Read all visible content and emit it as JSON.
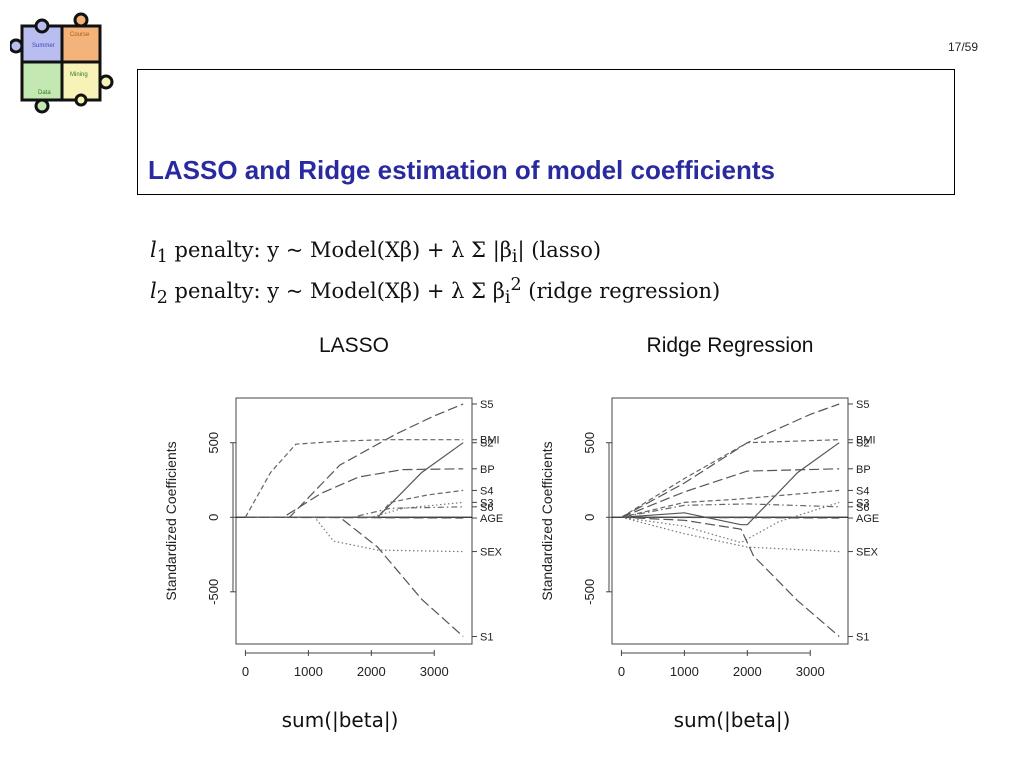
{
  "page": {
    "number": "17/59"
  },
  "logo": {
    "pieces": [
      "Summer",
      "Course",
      "Mining",
      "Data"
    ]
  },
  "title": "LASSO and Ridge estimation of model coefficients",
  "formulas": {
    "l1": {
      "term": "l",
      "sub": "1",
      "text": " penalty:  y ~ Model(Xβ) + λ Σ |β",
      "sub_i": "i",
      "tail": "|  (lasso)"
    },
    "l2": {
      "term": "l",
      "sub": "2",
      "text": " penalty:  y ~ Model(Xβ) + λ Σ β",
      "sub_i": "i",
      "sup": "2",
      "tail": "  (ridge regression)"
    }
  },
  "x_caption": "sum(|beta|)",
  "chart_data": [
    {
      "type": "line",
      "title": "LASSO",
      "xlabel": "",
      "ylabel": "Standardized Coefficients",
      "xlim": [
        -150,
        3600
      ],
      "ylim": [
        -850,
        800
      ],
      "xticks": [
        "0",
        "1000",
        "2000",
        "3000"
      ],
      "yticks": [
        "500",
        "0",
        "-500"
      ],
      "grid": false,
      "legend": "right-edge labels",
      "series": [
        {
          "name": "S5",
          "style": "longdash",
          "points": [
            [
              0,
              0
            ],
            [
              700,
              0
            ],
            [
              1500,
              350
            ],
            [
              2400,
              560
            ],
            [
              3000,
              680
            ],
            [
              3460,
              760
            ]
          ]
        },
        {
          "name": "BMI",
          "style": "dash",
          "points": [
            [
              0,
              0
            ],
            [
              400,
              300
            ],
            [
              800,
              490
            ],
            [
              1500,
              510
            ],
            [
              2200,
              520
            ],
            [
              3460,
              520
            ]
          ]
        },
        {
          "name": "S2",
          "style": "solid",
          "points": [
            [
              0,
              0
            ],
            [
              2100,
              0
            ],
            [
              2800,
              300
            ],
            [
              3460,
              500
            ]
          ]
        },
        {
          "name": "BP",
          "style": "longdash",
          "points": [
            [
              0,
              0
            ],
            [
              600,
              0
            ],
            [
              1200,
              160
            ],
            [
              1800,
              270
            ],
            [
              2500,
              320
            ],
            [
              3460,
              325
            ]
          ]
        },
        {
          "name": "S4",
          "style": "dash",
          "points": [
            [
              0,
              0
            ],
            [
              2100,
              0
            ],
            [
              2300,
              100
            ],
            [
              2900,
              150
            ],
            [
              3460,
              180
            ]
          ]
        },
        {
          "name": "S3",
          "style": "dot",
          "points": [
            [
              0,
              0
            ],
            [
              2000,
              0
            ],
            [
              2500,
              60
            ],
            [
              3460,
              100
            ]
          ]
        },
        {
          "name": "S6",
          "style": "dotdash",
          "points": [
            [
              0,
              0
            ],
            [
              1700,
              0
            ],
            [
              2300,
              60
            ],
            [
              3460,
              70
            ]
          ]
        },
        {
          "name": "AGE",
          "style": "longdash",
          "points": [
            [
              0,
              0
            ],
            [
              3460,
              -5
            ]
          ]
        },
        {
          "name": "SEX",
          "style": "dot",
          "points": [
            [
              0,
              0
            ],
            [
              1100,
              0
            ],
            [
              1400,
              -160
            ],
            [
              2100,
              -220
            ],
            [
              3460,
              -230
            ]
          ]
        },
        {
          "name": "S1",
          "style": "longdash",
          "points": [
            [
              0,
              0
            ],
            [
              1500,
              0
            ],
            [
              2100,
              -200
            ],
            [
              2800,
              -550
            ],
            [
              3460,
              -800
            ]
          ]
        }
      ]
    },
    {
      "type": "line",
      "title": "Ridge Regression",
      "xlabel": "",
      "ylabel": "Standardized Coefficients",
      "xlim": [
        -150,
        3600
      ],
      "ylim": [
        -850,
        800
      ],
      "xticks": [
        "0",
        "1000",
        "2000",
        "3000"
      ],
      "yticks": [
        "500",
        "0",
        "-500"
      ],
      "grid": false,
      "legend": "right-edge labels",
      "series": [
        {
          "name": "S5",
          "style": "longdash",
          "points": [
            [
              0,
              0
            ],
            [
              1000,
              230
            ],
            [
              2000,
              500
            ],
            [
              3000,
              690
            ],
            [
              3460,
              760
            ]
          ]
        },
        {
          "name": "BMI",
          "style": "dash",
          "points": [
            [
              0,
              0
            ],
            [
              1000,
              260
            ],
            [
              2000,
              500
            ],
            [
              3460,
              520
            ]
          ]
        },
        {
          "name": "S2",
          "style": "solid",
          "points": [
            [
              0,
              0
            ],
            [
              1000,
              30
            ],
            [
              1900,
              -50
            ],
            [
              2000,
              -50
            ],
            [
              2800,
              300
            ],
            [
              3460,
              500
            ]
          ]
        },
        {
          "name": "BP",
          "style": "longdash",
          "points": [
            [
              0,
              0
            ],
            [
              1000,
              170
            ],
            [
              2000,
              310
            ],
            [
              3460,
              325
            ]
          ]
        },
        {
          "name": "S4",
          "style": "dash",
          "points": [
            [
              0,
              0
            ],
            [
              1000,
              100
            ],
            [
              1800,
              120
            ],
            [
              3460,
              180
            ]
          ]
        },
        {
          "name": "S3",
          "style": "dot",
          "points": [
            [
              0,
              0
            ],
            [
              1000,
              -60
            ],
            [
              1900,
              -170
            ],
            [
              2500,
              -30
            ],
            [
              3460,
              100
            ]
          ]
        },
        {
          "name": "S6",
          "style": "dotdash",
          "points": [
            [
              0,
              0
            ],
            [
              1000,
              80
            ],
            [
              2000,
              90
            ],
            [
              3460,
              70
            ]
          ]
        },
        {
          "name": "AGE",
          "style": "longdash",
          "points": [
            [
              0,
              0
            ],
            [
              3460,
              -5
            ]
          ]
        },
        {
          "name": "SEX",
          "style": "dot",
          "points": [
            [
              0,
              0
            ],
            [
              1000,
              -110
            ],
            [
              2000,
              -200
            ],
            [
              3460,
              -230
            ]
          ]
        },
        {
          "name": "S1",
          "style": "longdash",
          "points": [
            [
              0,
              0
            ],
            [
              1000,
              -20
            ],
            [
              1900,
              -80
            ],
            [
              2100,
              -260
            ],
            [
              2800,
              -560
            ],
            [
              3460,
              -800
            ]
          ]
        }
      ]
    }
  ]
}
